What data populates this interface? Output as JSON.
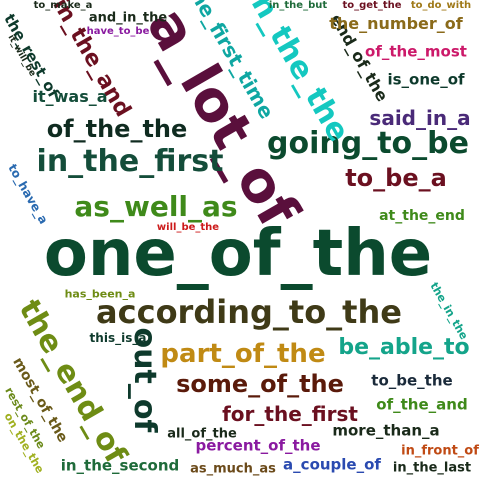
{
  "words": [
    {
      "text": "one_of_the",
      "color": "#0b4a2e"
    },
    {
      "text": "a_lot_of",
      "color": "#5a0f3c"
    },
    {
      "text": "according_to_the",
      "color": "#3f3a17"
    },
    {
      "text": "in_the_first",
      "color": "#144d3a"
    },
    {
      "text": "going_to_be",
      "color": "#0b4a2e"
    },
    {
      "text": "the_end_of",
      "color": "#6e8c14"
    },
    {
      "text": "out_of",
      "color": "#0e3a2c"
    },
    {
      "text": "as_well_as",
      "color": "#3f8a1a"
    },
    {
      "text": "of_the_the",
      "color": "#0f2b20"
    },
    {
      "text": "in_the_the",
      "color": "#14c8c0"
    },
    {
      "text": "in_the_and",
      "color": "#6b1020"
    },
    {
      "text": "part_of_the",
      "color": "#c08a14"
    },
    {
      "text": "some_of_the",
      "color": "#5a1a0a"
    },
    {
      "text": "to_be_a",
      "color": "#6b1020"
    },
    {
      "text": "be_able_to",
      "color": "#14a48a"
    },
    {
      "text": "the_first_time",
      "color": "#0fa7a2"
    },
    {
      "text": "said_in_a",
      "color": "#4a2a78"
    },
    {
      "text": "end_of_the",
      "color": "#1a2a1a"
    },
    {
      "text": "for_the_first",
      "color": "#6b1020"
    },
    {
      "text": "the_number_of",
      "color": "#8a6a1a"
    },
    {
      "text": "the_rest_of",
      "color": "#0e3a2c"
    },
    {
      "text": "it_was_a",
      "color": "#144d3a"
    },
    {
      "text": "most_of_the",
      "color": "#6a5a1a"
    },
    {
      "text": "of_the_most",
      "color": "#cc1a6a"
    },
    {
      "text": "is_one_of",
      "color": "#0e3a2c"
    },
    {
      "text": "to_be_the",
      "color": "#1a2a3a"
    },
    {
      "text": "of_the_and",
      "color": "#3f8a1a"
    },
    {
      "text": "percent_of_the",
      "color": "#8a1aa0"
    },
    {
      "text": "more_than_a",
      "color": "#1a2a1a"
    },
    {
      "text": "in_the_second",
      "color": "#1f6b3a"
    },
    {
      "text": "as_much_as",
      "color": "#6b4a1a"
    },
    {
      "text": "a_couple_of",
      "color": "#2a4ab0"
    },
    {
      "text": "in_front_of",
      "color": "#c04a14"
    },
    {
      "text": "in_the_last",
      "color": "#1a2a1a"
    },
    {
      "text": "all_of_the",
      "color": "#1a2a1a"
    },
    {
      "text": "at_the_end",
      "color": "#3f8a1a"
    },
    {
      "text": "to_have_a",
      "color": "#2a6ab0"
    },
    {
      "text": "will_be_the",
      "color": "#cc1a1a"
    },
    {
      "text": "has_been_a",
      "color": "#6e8c14"
    },
    {
      "text": "this_is_a",
      "color": "#0e3a2c"
    },
    {
      "text": "the_in_the",
      "color": "#14a48a"
    },
    {
      "text": "rest_of_the",
      "color": "#6b8a1a"
    },
    {
      "text": "on_the_the",
      "color": "#a0b020"
    },
    {
      "text": "to_make_a",
      "color": "#1a2a1a"
    },
    {
      "text": "and_in_the",
      "color": "#1a2a1a"
    },
    {
      "text": "have_to_be",
      "color": "#8a1aa0"
    },
    {
      "text": "in_the_but",
      "color": "#1f6b3a"
    },
    {
      "text": "to_get_the",
      "color": "#6b1020"
    },
    {
      "text": "to_do_with",
      "color": "#a07a1a"
    },
    {
      "text": "it_will_be",
      "color": "#1a2a1a"
    }
  ]
}
